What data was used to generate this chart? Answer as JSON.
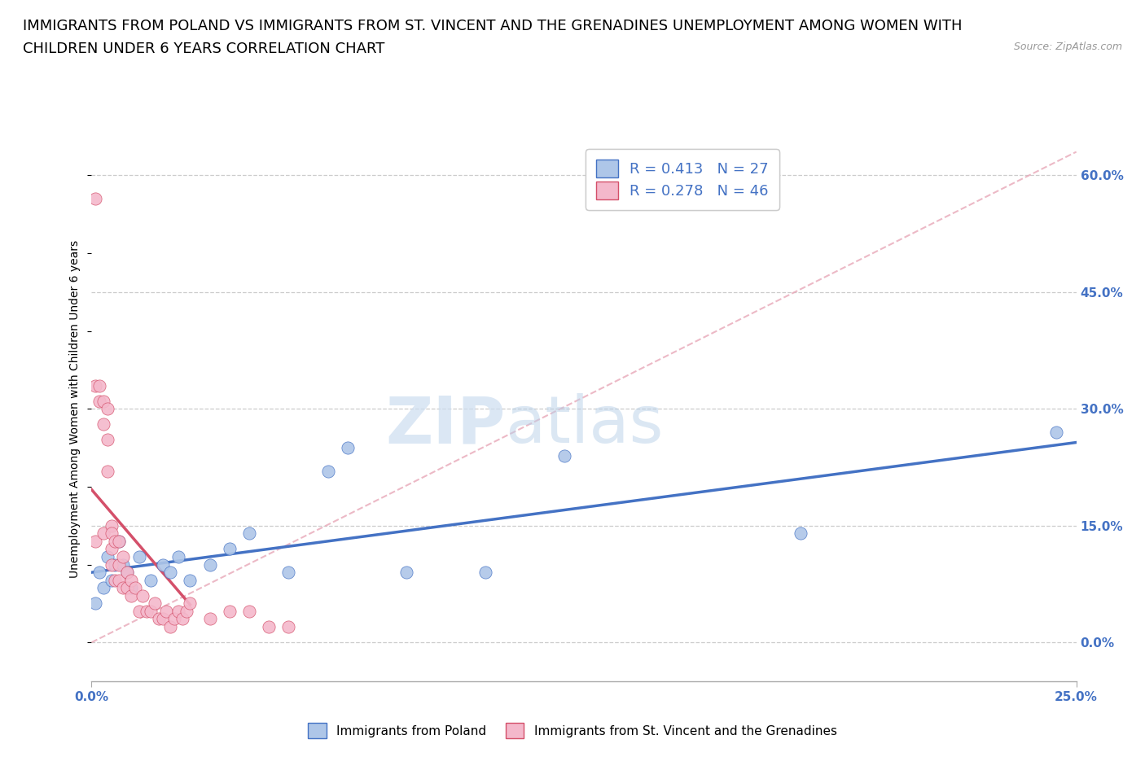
{
  "title_line1": "IMMIGRANTS FROM POLAND VS IMMIGRANTS FROM ST. VINCENT AND THE GRENADINES UNEMPLOYMENT AMONG WOMEN WITH",
  "title_line2": "CHILDREN UNDER 6 YEARS CORRELATION CHART",
  "source": "Source: ZipAtlas.com",
  "xlabel_start": "0.0%",
  "xlabel_end": "25.0%",
  "ylabel": "Unemployment Among Women with Children Under 6 years",
  "ytick_labels": [
    "60.0%",
    "45.0%",
    "30.0%",
    "15.0%",
    "0.0%"
  ],
  "ytick_values": [
    0.6,
    0.45,
    0.3,
    0.15,
    0.0
  ],
  "xlim": [
    0.0,
    0.25
  ],
  "ylim": [
    -0.05,
    0.65
  ],
  "legend_entry1": "R = 0.413   N = 27",
  "legend_entry2": "R = 0.278   N = 46",
  "legend_label1": "Immigrants from Poland",
  "legend_label2": "Immigrants from St. Vincent and the Grenadines",
  "color_poland": "#aec6e8",
  "color_stvincent": "#f4b8cb",
  "color_poland_line": "#4472c4",
  "color_stvincent_line": "#d4506a",
  "color_diagonal_line": "#e8a8b8",
  "poland_x": [
    0.001,
    0.002,
    0.003,
    0.004,
    0.005,
    0.006,
    0.007,
    0.008,
    0.009,
    0.01,
    0.012,
    0.015,
    0.018,
    0.02,
    0.022,
    0.025,
    0.03,
    0.035,
    0.04,
    0.05,
    0.06,
    0.065,
    0.08,
    0.1,
    0.12,
    0.18,
    0.245
  ],
  "poland_y": [
    0.05,
    0.09,
    0.07,
    0.11,
    0.08,
    0.1,
    0.13,
    0.1,
    0.09,
    0.07,
    0.11,
    0.08,
    0.1,
    0.09,
    0.11,
    0.08,
    0.1,
    0.12,
    0.14,
    0.09,
    0.22,
    0.25,
    0.09,
    0.09,
    0.24,
    0.14,
    0.27
  ],
  "stvincent_x": [
    0.001,
    0.001,
    0.001,
    0.002,
    0.002,
    0.003,
    0.003,
    0.003,
    0.004,
    0.004,
    0.004,
    0.005,
    0.005,
    0.005,
    0.005,
    0.006,
    0.006,
    0.007,
    0.007,
    0.007,
    0.008,
    0.008,
    0.009,
    0.009,
    0.01,
    0.01,
    0.011,
    0.012,
    0.013,
    0.014,
    0.015,
    0.016,
    0.017,
    0.018,
    0.019,
    0.02,
    0.021,
    0.022,
    0.023,
    0.024,
    0.025,
    0.03,
    0.035,
    0.04,
    0.045,
    0.05
  ],
  "stvincent_y": [
    0.57,
    0.33,
    0.13,
    0.31,
    0.33,
    0.31,
    0.28,
    0.14,
    0.3,
    0.26,
    0.22,
    0.15,
    0.14,
    0.12,
    0.1,
    0.13,
    0.08,
    0.13,
    0.1,
    0.08,
    0.11,
    0.07,
    0.09,
    0.07,
    0.08,
    0.06,
    0.07,
    0.04,
    0.06,
    0.04,
    0.04,
    0.05,
    0.03,
    0.03,
    0.04,
    0.02,
    0.03,
    0.04,
    0.03,
    0.04,
    0.05,
    0.03,
    0.04,
    0.04,
    0.02,
    0.02
  ],
  "watermark_zip": "ZIP",
  "watermark_atlas": "atlas",
  "title_fontsize": 13,
  "axis_label_fontsize": 10,
  "tick_fontsize": 11
}
